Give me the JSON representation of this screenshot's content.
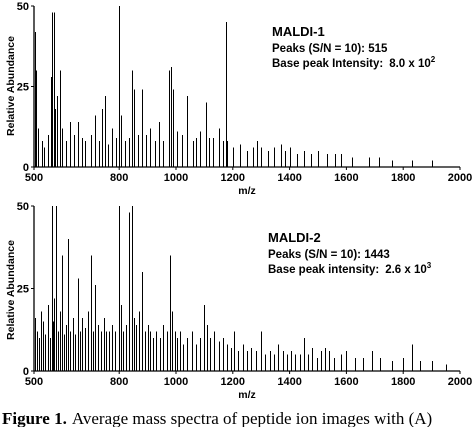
{
  "chart_data": [
    {
      "type": "bar",
      "panel": "top",
      "xlabel": "m/z",
      "ylabel": "Relative Abundance",
      "xlim": [
        500,
        2000
      ],
      "ylim": [
        0,
        50
      ],
      "x_ticks": [
        500,
        800,
        1000,
        1200,
        1400,
        1600,
        1800,
        2000
      ],
      "y_ticks": [
        0,
        25,
        50
      ],
      "annotation": {
        "title": "MALDI-1",
        "peaks_text": "Peaks (S/N = 10): 515",
        "intensity_label": "Base peak Intensity:",
        "intensity_mantissa": "8.0 x 10",
        "intensity_exp": "2"
      },
      "peaks": [
        [
          503,
          42
        ],
        [
          508,
          30
        ],
        [
          515,
          12
        ],
        [
          528,
          8
        ],
        [
          535,
          6
        ],
        [
          548,
          10
        ],
        [
          560,
          28
        ],
        [
          562,
          48
        ],
        [
          570,
          48
        ],
        [
          575,
          18
        ],
        [
          582,
          22
        ],
        [
          592,
          30
        ],
        [
          600,
          12
        ],
        [
          612,
          8
        ],
        [
          625,
          14
        ],
        [
          640,
          10
        ],
        [
          655,
          14
        ],
        [
          668,
          9
        ],
        [
          680,
          8
        ],
        [
          700,
          10
        ],
        [
          715,
          16
        ],
        [
          730,
          8
        ],
        [
          740,
          18
        ],
        [
          750,
          22
        ],
        [
          760,
          7
        ],
        [
          775,
          12
        ],
        [
          790,
          9
        ],
        [
          800,
          50
        ],
        [
          806,
          16
        ],
        [
          820,
          8
        ],
        [
          835,
          9
        ],
        [
          845,
          30
        ],
        [
          853,
          24
        ],
        [
          865,
          10
        ],
        [
          880,
          24
        ],
        [
          895,
          10
        ],
        [
          910,
          12
        ],
        [
          925,
          8
        ],
        [
          940,
          14
        ],
        [
          955,
          8
        ],
        [
          975,
          30
        ],
        [
          982,
          31
        ],
        [
          990,
          24
        ],
        [
          1005,
          11
        ],
        [
          1020,
          10
        ],
        [
          1040,
          22
        ],
        [
          1060,
          8
        ],
        [
          1070,
          9
        ],
        [
          1085,
          11
        ],
        [
          1105,
          20
        ],
        [
          1115,
          9
        ],
        [
          1130,
          9
        ],
        [
          1150,
          12
        ],
        [
          1165,
          8
        ],
        [
          1175,
          45
        ],
        [
          1180,
          8
        ],
        [
          1200,
          6
        ],
        [
          1225,
          7
        ],
        [
          1250,
          5
        ],
        [
          1270,
          6
        ],
        [
          1285,
          8
        ],
        [
          1300,
          6
        ],
        [
          1325,
          5
        ],
        [
          1345,
          6
        ],
        [
          1370,
          7
        ],
        [
          1385,
          5
        ],
        [
          1400,
          6
        ],
        [
          1425,
          4
        ],
        [
          1450,
          5
        ],
        [
          1475,
          4
        ],
        [
          1500,
          5
        ],
        [
          1530,
          4
        ],
        [
          1560,
          4
        ],
        [
          1580,
          4
        ],
        [
          1620,
          3
        ],
        [
          1680,
          3
        ],
        [
          1715,
          3
        ],
        [
          1760,
          2
        ],
        [
          1830,
          2
        ],
        [
          1900,
          2
        ]
      ]
    },
    {
      "type": "bar",
      "panel": "bottom",
      "xlabel": "m/z",
      "ylabel": "Relative Abundance",
      "xlim": [
        500,
        2000
      ],
      "ylim": [
        0,
        50
      ],
      "x_ticks": [
        500,
        800,
        1000,
        1200,
        1400,
        1600,
        1800,
        2000
      ],
      "y_ticks": [
        0,
        25,
        50
      ],
      "annotation": {
        "title": "MALDI-2",
        "peaks_text": "Peaks (S/N = 10): 1443",
        "intensity_label": "Base peak intensity:",
        "intensity_mantissa": "2.6 x 10",
        "intensity_exp": "3"
      },
      "peaks": [
        [
          505,
          16
        ],
        [
          512,
          12
        ],
        [
          518,
          10
        ],
        [
          525,
          18
        ],
        [
          532,
          15
        ],
        [
          540,
          11
        ],
        [
          548,
          20
        ],
        [
          555,
          10
        ],
        [
          562,
          50
        ],
        [
          566,
          15
        ],
        [
          572,
          22
        ],
        [
          578,
          50
        ],
        [
          584,
          12
        ],
        [
          590,
          18
        ],
        [
          597,
          35
        ],
        [
          604,
          11
        ],
        [
          612,
          14
        ],
        [
          620,
          40
        ],
        [
          628,
          12
        ],
        [
          636,
          16
        ],
        [
          645,
          11
        ],
        [
          655,
          28
        ],
        [
          662,
          12
        ],
        [
          670,
          16
        ],
        [
          680,
          13
        ],
        [
          690,
          18
        ],
        [
          700,
          35
        ],
        [
          708,
          12
        ],
        [
          716,
          26
        ],
        [
          725,
          14
        ],
        [
          735,
          12
        ],
        [
          745,
          16
        ],
        [
          755,
          12
        ],
        [
          765,
          12
        ],
        [
          775,
          14
        ],
        [
          785,
          12
        ],
        [
          798,
          50
        ],
        [
          806,
          20
        ],
        [
          815,
          12
        ],
        [
          825,
          14
        ],
        [
          836,
          48
        ],
        [
          845,
          50
        ],
        [
          852,
          16
        ],
        [
          860,
          14
        ],
        [
          870,
          18
        ],
        [
          880,
          30
        ],
        [
          890,
          12
        ],
        [
          900,
          14
        ],
        [
          910,
          12
        ],
        [
          920,
          10
        ],
        [
          930,
          12
        ],
        [
          942,
          10
        ],
        [
          955,
          14
        ],
        [
          968,
          12
        ],
        [
          978,
          35
        ],
        [
          985,
          18
        ],
        [
          995,
          12
        ],
        [
          1005,
          10
        ],
        [
          1015,
          12
        ],
        [
          1025,
          8
        ],
        [
          1040,
          10
        ],
        [
          1055,
          12
        ],
        [
          1070,
          8
        ],
        [
          1085,
          10
        ],
        [
          1100,
          20
        ],
        [
          1110,
          14
        ],
        [
          1120,
          10
        ],
        [
          1135,
          12
        ],
        [
          1150,
          9
        ],
        [
          1165,
          10
        ],
        [
          1180,
          8
        ],
        [
          1195,
          7
        ],
        [
          1205,
          12
        ],
        [
          1220,
          6
        ],
        [
          1235,
          8
        ],
        [
          1250,
          6
        ],
        [
          1265,
          7
        ],
        [
          1280,
          6
        ],
        [
          1300,
          12
        ],
        [
          1315,
          5
        ],
        [
          1330,
          6
        ],
        [
          1345,
          5
        ],
        [
          1360,
          8
        ],
        [
          1375,
          6
        ],
        [
          1390,
          5
        ],
        [
          1405,
          6
        ],
        [
          1420,
          5
        ],
        [
          1435,
          5
        ],
        [
          1450,
          10
        ],
        [
          1465,
          5
        ],
        [
          1480,
          7
        ],
        [
          1495,
          4
        ],
        [
          1510,
          6
        ],
        [
          1525,
          7
        ],
        [
          1540,
          6
        ],
        [
          1555,
          4
        ],
        [
          1580,
          5
        ],
        [
          1600,
          6
        ],
        [
          1630,
          4
        ],
        [
          1660,
          4
        ],
        [
          1690,
          6
        ],
        [
          1720,
          4
        ],
        [
          1760,
          3
        ],
        [
          1800,
          4
        ],
        [
          1830,
          8
        ],
        [
          1860,
          3
        ],
        [
          1900,
          3
        ],
        [
          1950,
          2
        ]
      ]
    }
  ],
  "caption": {
    "label": "Figure 1.",
    "text": "Average mass spectra of peptide ion images with (A)"
  }
}
